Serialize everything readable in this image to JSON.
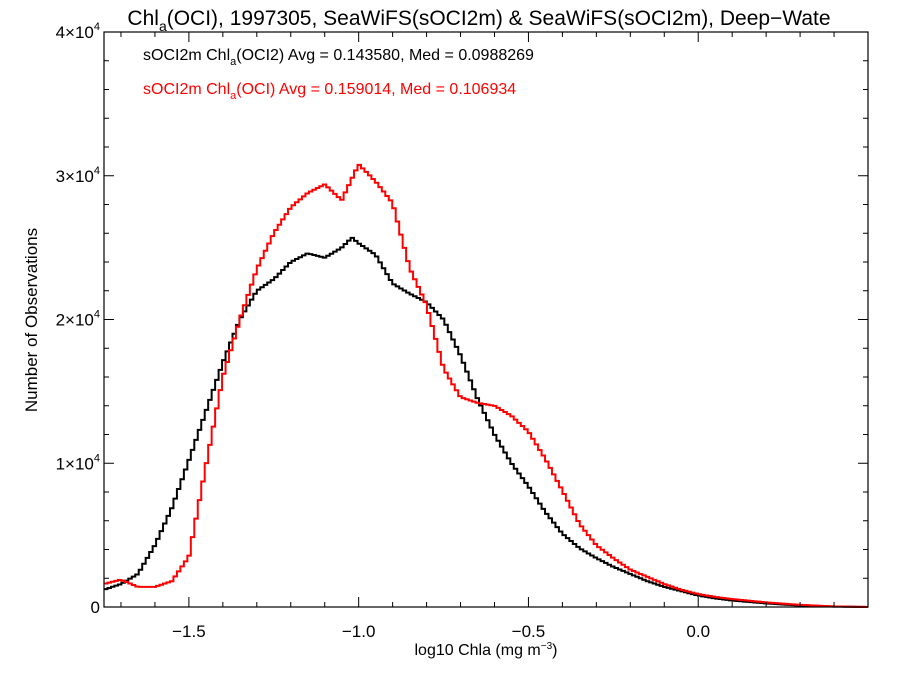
{
  "chart_data": {
    "type": "line",
    "title": {
      "pre": "Chl",
      "sub": "a",
      "post": "(OCI), 1997305, SeaWiFS(sOCI2m) & SeaWiFS(sOCI2m), Deep−Wate"
    },
    "xlabel": {
      "pre": "log10 Chla (mg m",
      "sup": "−3",
      "post": ")"
    },
    "ylabel": "Number of Observations",
    "xlim": [
      -1.75,
      0.5
    ],
    "ylim": [
      0,
      40000
    ],
    "x_ticks": [
      {
        "value": -1.5,
        "label": "−1.5"
      },
      {
        "value": -1.0,
        "label": "−1.0"
      },
      {
        "value": -0.5,
        "label": "−0.5"
      },
      {
        "value": 0.0,
        "label": "0.0"
      }
    ],
    "y_ticks": [
      {
        "value": 0,
        "label": "0",
        "exp": ""
      },
      {
        "value": 10000,
        "label": "1×10",
        "exp": "4"
      },
      {
        "value": 20000,
        "label": "2×10",
        "exp": "4"
      },
      {
        "value": 30000,
        "label": "3×10",
        "exp": "4"
      },
      {
        "value": 40000,
        "label": "4×10",
        "exp": "4"
      }
    ],
    "grid": false,
    "legend_position": "top-left",
    "series": [
      {
        "color": "#000000",
        "style": "step",
        "legend": {
          "pre": "sOCI2m Chl",
          "sub": "a",
          "post": "(OCI2) Avg = 0.143580, Med = 0.0988269"
        },
        "x": [
          -1.75,
          -1.7,
          -1.65,
          -1.6,
          -1.55,
          -1.5,
          -1.45,
          -1.4,
          -1.35,
          -1.3,
          -1.25,
          -1.2,
          -1.15,
          -1.1,
          -1.05,
          -1.02,
          -1.0,
          -0.95,
          -0.9,
          -0.85,
          -0.8,
          -0.75,
          -0.7,
          -0.65,
          -0.6,
          -0.55,
          -0.5,
          -0.45,
          -0.4,
          -0.35,
          -0.3,
          -0.25,
          -0.2,
          -0.15,
          -0.1,
          -0.05,
          0.0,
          0.05,
          0.1,
          0.2,
          0.3,
          0.4,
          0.5
        ],
        "y": [
          1200,
          1600,
          2300,
          4300,
          6900,
          10200,
          13600,
          17000,
          20000,
          22000,
          22800,
          24000,
          24600,
          24300,
          25000,
          25700,
          25300,
          24500,
          22500,
          21800,
          21200,
          20000,
          17500,
          14500,
          12000,
          10000,
          8400,
          6600,
          5100,
          4100,
          3400,
          2800,
          2300,
          1800,
          1400,
          1100,
          800,
          600,
          450,
          250,
          100,
          30,
          0
        ]
      },
      {
        "color": "#ff0000",
        "style": "step",
        "legend": {
          "pre": "sOCI2m Chl",
          "sub": "a",
          "post": "(OCI) Avg = 0.159014, Med = 0.106934"
        },
        "x": [
          -1.75,
          -1.7,
          -1.65,
          -1.6,
          -1.55,
          -1.5,
          -1.45,
          -1.4,
          -1.35,
          -1.3,
          -1.25,
          -1.2,
          -1.15,
          -1.1,
          -1.05,
          -1.0,
          -0.95,
          -0.9,
          -0.85,
          -0.8,
          -0.75,
          -0.7,
          -0.65,
          -0.6,
          -0.55,
          -0.5,
          -0.45,
          -0.4,
          -0.35,
          -0.3,
          -0.25,
          -0.2,
          -0.15,
          -0.1,
          -0.05,
          0.0,
          0.05,
          0.1,
          0.2,
          0.3,
          0.4,
          0.5
        ],
        "y": [
          1600,
          1900,
          1400,
          1400,
          1800,
          3500,
          9800,
          16000,
          20000,
          23500,
          26000,
          27800,
          28800,
          29400,
          28300,
          30800,
          29600,
          28100,
          23600,
          21000,
          16600,
          14600,
          14200,
          14000,
          13300,
          12200,
          10300,
          8100,
          5800,
          4300,
          3400,
          2600,
          2100,
          1600,
          1200,
          900,
          700,
          550,
          320,
          150,
          40,
          0
        ]
      }
    ]
  }
}
